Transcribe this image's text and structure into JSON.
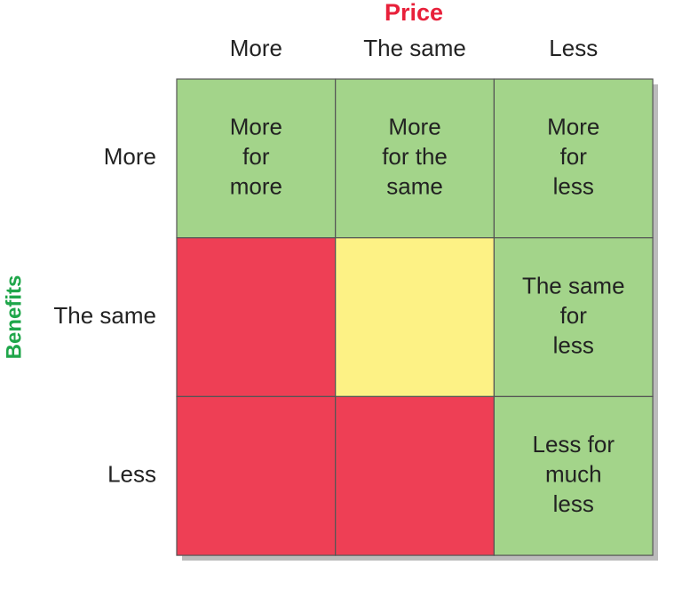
{
  "header": {
    "title": "Price",
    "title_color": "#e8203a",
    "columns": [
      "More",
      "The same",
      "Less"
    ]
  },
  "side": {
    "title": "Benefits",
    "title_color": "#1fa64a"
  },
  "rows": [
    {
      "label": "More",
      "cells": [
        {
          "color": "#a3d48a",
          "lines": [
            "More",
            "for",
            "more"
          ]
        },
        {
          "color": "#a3d48a",
          "lines": [
            "More",
            "for the",
            "same"
          ]
        },
        {
          "color": "#a3d48a",
          "lines": [
            "More",
            "for",
            "less"
          ]
        }
      ]
    },
    {
      "label": "The same",
      "cells": [
        {
          "color": "#ee3f55"
        },
        {
          "color": "#fdf285"
        },
        {
          "color": "#a3d48a",
          "lines": [
            "The same",
            "for",
            "less"
          ]
        }
      ]
    },
    {
      "label": "Less",
      "cells": [
        {
          "color": "#ee3f55"
        },
        {
          "color": "#ee3f55"
        },
        {
          "color": "#a3d48a",
          "lines": [
            "Less for",
            "much",
            "less"
          ]
        }
      ]
    }
  ]
}
